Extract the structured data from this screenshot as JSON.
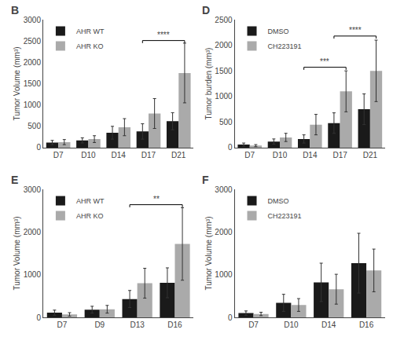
{
  "chart_data": [
    {
      "type": "bar",
      "title": "B",
      "categories": [
        "D7",
        "D10",
        "D14",
        "D17",
        "D21"
      ],
      "series": [
        {
          "name": "AHR WT",
          "color": "#1a1a1a",
          "values": [
            120,
            170,
            350,
            380,
            620
          ],
          "errors": [
            50,
            60,
            150,
            180,
            200
          ]
        },
        {
          "name": "AHR KO",
          "color": "#aaaaaa",
          "values": [
            130,
            200,
            480,
            800,
            1750
          ],
          "errors": [
            60,
            80,
            200,
            350,
            700
          ]
        }
      ],
      "ylabel": "Tumor Volume (mm³)",
      "ylim": [
        0,
        3000
      ],
      "yticks": [
        0,
        500,
        1000,
        1500,
        2000,
        2500,
        3000
      ],
      "grid": false,
      "legend": "upper left",
      "annotations": [
        {
          "text": "****",
          "x": [
            3,
            4
          ],
          "y": 2510
        }
      ]
    },
    {
      "type": "bar",
      "title": "D",
      "categories": [
        "D7",
        "D10",
        "D14",
        "D17",
        "D21"
      ],
      "series": [
        {
          "name": "DMSO",
          "color": "#1a1a1a",
          "values": [
            60,
            120,
            170,
            480,
            750
          ],
          "errors": [
            30,
            50,
            80,
            200,
            300
          ]
        },
        {
          "name": "CH223191",
          "color": "#aaaaaa",
          "values": [
            40,
            200,
            450,
            1100,
            1500
          ],
          "errors": [
            20,
            80,
            200,
            400,
            600
          ]
        }
      ],
      "ylabel": "Tumor burden (mm³)",
      "ylim": [
        0,
        2500
      ],
      "yticks": [
        0,
        500,
        1000,
        1500,
        2000,
        2500
      ],
      "grid": false,
      "legend": "upper left",
      "annotations": [
        {
          "text": "***",
          "x": [
            2,
            3
          ],
          "y": 1570
        },
        {
          "text": "****",
          "x": [
            3,
            4
          ],
          "y": 2180
        }
      ]
    },
    {
      "type": "bar",
      "title": "E",
      "categories": [
        "D7",
        "D9",
        "D13",
        "D16"
      ],
      "series": [
        {
          "name": "AHR WT",
          "color": "#1a1a1a",
          "values": [
            110,
            180,
            430,
            810
          ],
          "errors": [
            60,
            80,
            200,
            350
          ]
        },
        {
          "name": "AHR KO",
          "color": "#aaaaaa",
          "values": [
            70,
            190,
            800,
            1720
          ],
          "errors": [
            40,
            90,
            350,
            850
          ]
        }
      ],
      "ylabel": "Tumor Volume (mm³)",
      "ylim": [
        0,
        3000
      ],
      "yticks": [
        0,
        1000,
        2000,
        3000
      ],
      "grid": false,
      "legend": "upper left",
      "annotations": [
        {
          "text": "**",
          "x": [
            2,
            3
          ],
          "y": 2640
        }
      ]
    },
    {
      "type": "bar",
      "title": "F",
      "categories": [
        "D7",
        "D10",
        "D14",
        "D16"
      ],
      "series": [
        {
          "name": "DMSO",
          "color": "#1a1a1a",
          "values": [
            100,
            340,
            820,
            1270
          ],
          "errors": [
            50,
            200,
            450,
            700
          ]
        },
        {
          "name": "CH223191",
          "color": "#aaaaaa",
          "values": [
            80,
            290,
            660,
            1100
          ],
          "errors": [
            40,
            150,
            350,
            500
          ]
        }
      ],
      "ylabel": "Tumor Volume (mm³)",
      "ylim": [
        0,
        3000
      ],
      "yticks": [
        0,
        1000,
        2000,
        3000
      ],
      "grid": false,
      "legend": "upper left"
    }
  ]
}
